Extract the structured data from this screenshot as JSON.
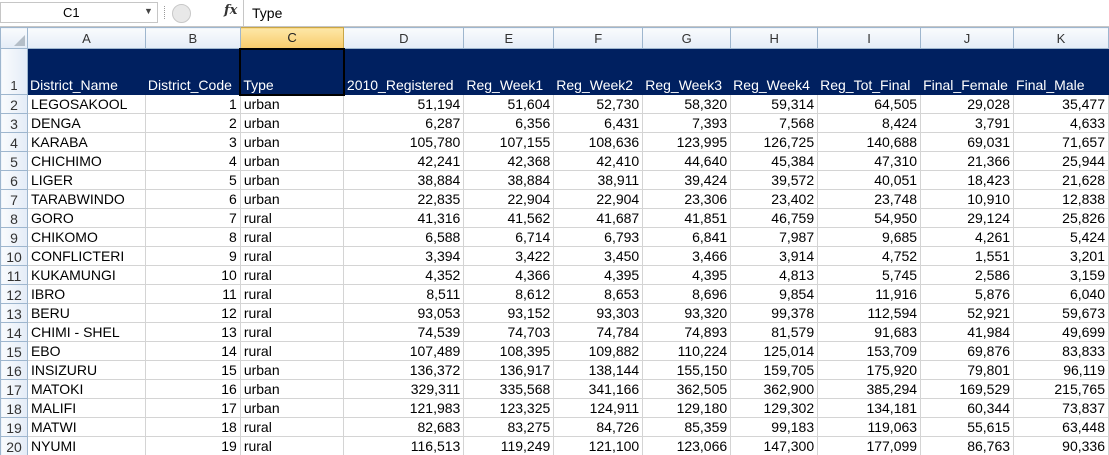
{
  "formula_bar": {
    "name_box": "C1",
    "fx_label": "fx",
    "formula": "Type"
  },
  "columns": [
    "A",
    "B",
    "C",
    "D",
    "E",
    "F",
    "G",
    "H",
    "I",
    "J",
    "K"
  ],
  "headers": [
    "District_Name",
    "District_Code",
    "Type",
    "2010_Registered",
    "Reg_Week1",
    "Reg_Week2",
    "Reg_Week3",
    "Reg_Week4",
    "Reg_Tot_Final",
    "Final_Female",
    "Final_Male"
  ],
  "rows": [
    {
      "n": "2",
      "c": [
        "LEGOSAKOOL",
        "1",
        "urban",
        "51,194",
        "51,604",
        "52,730",
        "58,320",
        "59,314",
        "64,505",
        "29,028",
        "35,477"
      ]
    },
    {
      "n": "3",
      "c": [
        "DENGA",
        "2",
        "urban",
        "6,287",
        "6,356",
        "6,431",
        "7,393",
        "7,568",
        "8,424",
        "3,791",
        "4,633"
      ]
    },
    {
      "n": "4",
      "c": [
        "KARABA",
        "3",
        "urban",
        "105,780",
        "107,155",
        "108,636",
        "123,995",
        "126,725",
        "140,688",
        "69,031",
        "71,657"
      ]
    },
    {
      "n": "5",
      "c": [
        "CHICHIMO",
        "4",
        "urban",
        "42,241",
        "42,368",
        "42,410",
        "44,640",
        "45,384",
        "47,310",
        "21,366",
        "25,944"
      ]
    },
    {
      "n": "6",
      "c": [
        "LIGER",
        "5",
        "urban",
        "38,884",
        "38,884",
        "38,911",
        "39,424",
        "39,572",
        "40,051",
        "18,423",
        "21,628"
      ]
    },
    {
      "n": "7",
      "c": [
        "TARABWINDO",
        "6",
        "urban",
        "22,835",
        "22,904",
        "22,904",
        "23,306",
        "23,402",
        "23,748",
        "10,910",
        "12,838"
      ]
    },
    {
      "n": "8",
      "c": [
        "GORO",
        "7",
        "rural",
        "41,316",
        "41,562",
        "41,687",
        "41,851",
        "46,759",
        "54,950",
        "29,124",
        "25,826"
      ]
    },
    {
      "n": "9",
      "c": [
        "CHIKOMO",
        "8",
        "rural",
        "6,588",
        "6,714",
        "6,793",
        "6,841",
        "7,987",
        "9,685",
        "4,261",
        "5,424"
      ]
    },
    {
      "n": "10",
      "c": [
        "CONFLICTERI",
        "9",
        "rural",
        "3,394",
        "3,422",
        "3,450",
        "3,466",
        "3,914",
        "4,752",
        "1,551",
        "3,201"
      ]
    },
    {
      "n": "11",
      "c": [
        "KUKAMUNGI",
        "10",
        "rural",
        "4,352",
        "4,366",
        "4,395",
        "4,395",
        "4,813",
        "5,745",
        "2,586",
        "3,159"
      ]
    },
    {
      "n": "12",
      "c": [
        "IBRO",
        "11",
        "rural",
        "8,511",
        "8,612",
        "8,653",
        "8,696",
        "9,854",
        "11,916",
        "5,876",
        "6,040"
      ]
    },
    {
      "n": "13",
      "c": [
        "BERU",
        "12",
        "rural",
        "93,053",
        "93,152",
        "93,303",
        "93,320",
        "99,378",
        "112,594",
        "52,921",
        "59,673"
      ]
    },
    {
      "n": "14",
      "c": [
        "CHIMI - SHEL",
        "13",
        "rural",
        "74,539",
        "74,703",
        "74,784",
        "74,893",
        "81,579",
        "91,683",
        "41,984",
        "49,699"
      ]
    },
    {
      "n": "15",
      "c": [
        "EBO",
        "14",
        "rural",
        "107,489",
        "108,395",
        "109,882",
        "110,224",
        "125,014",
        "153,709",
        "69,876",
        "83,833"
      ]
    },
    {
      "n": "16",
      "c": [
        "INSIZURU",
        "15",
        "urban",
        "136,372",
        "136,917",
        "138,144",
        "155,150",
        "159,705",
        "175,920",
        "79,801",
        "96,119"
      ]
    },
    {
      "n": "17",
      "c": [
        "MATOKI",
        "16",
        "urban",
        "329,311",
        "335,568",
        "341,166",
        "362,505",
        "362,900",
        "385,294",
        "169,529",
        "215,765"
      ]
    },
    {
      "n": "18",
      "c": [
        "MALIFI",
        "17",
        "urban",
        "121,983",
        "123,325",
        "124,911",
        "129,180",
        "129,302",
        "134,181",
        "60,344",
        "73,837"
      ]
    },
    {
      "n": "19",
      "c": [
        "MATWI",
        "18",
        "rural",
        "82,683",
        "83,275",
        "84,726",
        "85,359",
        "99,183",
        "119,063",
        "55,615",
        "63,448"
      ]
    },
    {
      "n": "20",
      "c": [
        "NYUMI",
        "19",
        "rural",
        "116,513",
        "119,249",
        "121,100",
        "123,066",
        "147,300",
        "177,099",
        "86,763",
        "90,336"
      ]
    }
  ],
  "header_row_number": "1",
  "selected_column": "C",
  "colors": {
    "header_fill": "#002060",
    "header_text": "#ffffff",
    "selected_col_header": "#f8cb6b"
  }
}
